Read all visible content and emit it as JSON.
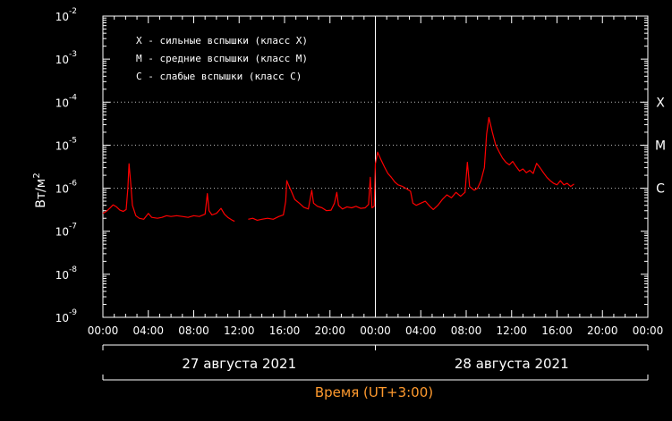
{
  "chart_data": {
    "type": "line",
    "legend": [
      {
        "code": "X",
        "text": "X - сильные вспышки (класс X)"
      },
      {
        "code": "M",
        "text": "M - средние вспышки (класс M)"
      },
      {
        "code": "C",
        "text": "C  - слабые вспышки (класс C)"
      }
    ],
    "ylabel": "Вт/м²",
    "ylabel_base": "Вт/м",
    "ylabel_exp": "2",
    "xlabel": "Время (UT+3:00)",
    "yscale": "log",
    "ylim_exp": [
      -9,
      -2
    ],
    "y_ticks": [
      {
        "base": "10",
        "exp": "-2",
        "value": 0.01
      },
      {
        "base": "10",
        "exp": "-3",
        "value": 0.001
      },
      {
        "base": "10",
        "exp": "-4",
        "value": 0.0001
      },
      {
        "base": "10",
        "exp": "-5",
        "value": 1e-05
      },
      {
        "base": "10",
        "exp": "-6",
        "value": 1e-06
      },
      {
        "base": "10",
        "exp": "-7",
        "value": 1e-07
      },
      {
        "base": "10",
        "exp": "-8",
        "value": 1e-08
      },
      {
        "base": "10",
        "exp": "-9",
        "value": 1e-09
      }
    ],
    "x_unit": "hours since 27 августа 2021 00:00 (UT+3)",
    "xlim": [
      0,
      48
    ],
    "x_tick_labels": [
      "00:00",
      "04:00",
      "08:00",
      "12:00",
      "16:00",
      "20:00",
      "00:00",
      "04:00",
      "08:00",
      "12:00",
      "16:00",
      "20:00",
      "00:00"
    ],
    "days": [
      {
        "label": "27 августа 2021",
        "start_hour": 0,
        "end_hour": 24
      },
      {
        "label": "28 августа 2021",
        "start_hour": 24,
        "end_hour": 48
      }
    ],
    "day_divider_hour": 24,
    "class_levels": [
      {
        "label": "X",
        "value": 0.0001
      },
      {
        "label": "M",
        "value": 1e-05
      },
      {
        "label": "C",
        "value": 1e-06
      }
    ],
    "series_color": "#ff0000",
    "series": [
      {
        "name": "",
        "segments": [
          [
            [
              0,
              2.6e-07
            ],
            [
              0.3,
              2.9e-07
            ],
            [
              0.6,
              3.4e-07
            ],
            [
              0.9,
              4.1e-07
            ],
            [
              1.2,
              3.7e-07
            ],
            [
              1.5,
              3.1e-07
            ],
            [
              1.8,
              2.9e-07
            ],
            [
              2.05,
              3.2e-07
            ],
            [
              2.2,
              1e-06
            ],
            [
              2.3,
              3.7e-06
            ],
            [
              2.45,
              1.3e-06
            ],
            [
              2.6,
              4e-07
            ],
            [
              2.9,
              2.3e-07
            ],
            [
              3.2,
              2e-07
            ],
            [
              3.6,
              1.9e-07
            ],
            [
              4.0,
              2.6e-07
            ],
            [
              4.3,
              2.1e-07
            ],
            [
              4.8,
              2e-07
            ],
            [
              5.2,
              2.1e-07
            ],
            [
              5.6,
              2.3e-07
            ],
            [
              6.0,
              2.2e-07
            ],
            [
              6.5,
              2.3e-07
            ],
            [
              7.0,
              2.2e-07
            ],
            [
              7.5,
              2.1e-07
            ],
            [
              8.0,
              2.3e-07
            ],
            [
              8.5,
              2.2e-07
            ],
            [
              9.0,
              2.5e-07
            ],
            [
              9.2,
              7.5e-07
            ],
            [
              9.35,
              3e-07
            ],
            [
              9.6,
              2.4e-07
            ],
            [
              10.0,
              2.6e-07
            ],
            [
              10.4,
              3.4e-07
            ],
            [
              10.7,
              2.5e-07
            ],
            [
              11.0,
              2.1e-07
            ],
            [
              11.4,
              1.8e-07
            ],
            [
              11.6,
              1.7e-07
            ]
          ],
          [
            [
              12.8,
              1.9e-07
            ],
            [
              13.2,
              2e-07
            ],
            [
              13.6,
              1.8e-07
            ],
            [
              14.0,
              1.9e-07
            ],
            [
              14.5,
              2e-07
            ],
            [
              15.0,
              1.9e-07
            ],
            [
              15.5,
              2.2e-07
            ],
            [
              15.9,
              2.4e-07
            ],
            [
              16.1,
              5e-07
            ],
            [
              16.2,
              1.5e-06
            ],
            [
              16.35,
              1.2e-06
            ],
            [
              16.6,
              8.5e-07
            ],
            [
              16.9,
              5.5e-07
            ],
            [
              17.3,
              4.5e-07
            ],
            [
              17.7,
              3.6e-07
            ],
            [
              18.1,
              3.3e-07
            ],
            [
              18.4,
              9e-07
            ],
            [
              18.55,
              4.5e-07
            ],
            [
              18.9,
              3.8e-07
            ],
            [
              19.3,
              3.5e-07
            ],
            [
              19.7,
              3e-07
            ],
            [
              20.1,
              3.1e-07
            ],
            [
              20.4,
              4.5e-07
            ],
            [
              20.6,
              8e-07
            ],
            [
              20.75,
              4e-07
            ],
            [
              21.1,
              3.3e-07
            ],
            [
              21.5,
              3.7e-07
            ],
            [
              21.9,
              3.5e-07
            ],
            [
              22.3,
              3.8e-07
            ],
            [
              22.7,
              3.4e-07
            ],
            [
              23.1,
              3.5e-07
            ],
            [
              23.4,
              4.2e-07
            ],
            [
              23.55,
              1.8e-06
            ],
            [
              23.7,
              3.5e-07
            ],
            [
              23.9,
              3.8e-07
            ],
            [
              24.0,
              3.7e-06
            ],
            [
              24.2,
              6.9e-06
            ],
            [
              24.5,
              4.6e-06
            ],
            [
              24.8,
              3.1e-06
            ],
            [
              25.1,
              2.2e-06
            ],
            [
              25.4,
              1.8e-06
            ],
            [
              25.7,
              1.4e-06
            ],
            [
              26.0,
              1.2e-06
            ],
            [
              26.4,
              1.1e-06
            ],
            [
              26.8,
              9.5e-07
            ],
            [
              27.1,
              8.5e-07
            ],
            [
              27.3,
              4.5e-07
            ],
            [
              27.6,
              4e-07
            ],
            [
              28.0,
              4.5e-07
            ],
            [
              28.4,
              5e-07
            ],
            [
              28.8,
              3.8e-07
            ],
            [
              29.1,
              3.2e-07
            ],
            [
              29.5,
              4e-07
            ],
            [
              29.9,
              5.5e-07
            ],
            [
              30.3,
              7e-07
            ],
            [
              30.7,
              6e-07
            ],
            [
              31.1,
              8e-07
            ],
            [
              31.5,
              6.5e-07
            ],
            [
              31.9,
              8e-07
            ],
            [
              32.1,
              4e-06
            ],
            [
              32.3,
              1.1e-06
            ],
            [
              32.7,
              9e-07
            ],
            [
              33.0,
              1e-06
            ],
            [
              33.3,
              1.5e-06
            ],
            [
              33.6,
              3e-06
            ],
            [
              33.8,
              1.8e-05
            ],
            [
              34.0,
              4.4e-05
            ],
            [
              34.3,
              2e-05
            ],
            [
              34.6,
              1e-05
            ],
            [
              34.9,
              7e-06
            ],
            [
              35.2,
              5e-06
            ],
            [
              35.5,
              4e-06
            ],
            [
              35.8,
              3.5e-06
            ],
            [
              36.1,
              4.2e-06
            ],
            [
              36.4,
              3.2e-06
            ],
            [
              36.7,
              2.5e-06
            ],
            [
              37.0,
              2.8e-06
            ],
            [
              37.3,
              2.3e-06
            ],
            [
              37.6,
              2.6e-06
            ],
            [
              37.9,
              2.2e-06
            ],
            [
              38.2,
              3.8e-06
            ],
            [
              38.5,
              3e-06
            ],
            [
              38.8,
              2.3e-06
            ],
            [
              39.1,
              1.8e-06
            ],
            [
              39.4,
              1.5e-06
            ],
            [
              39.7,
              1.3e-06
            ],
            [
              40.0,
              1.2e-06
            ],
            [
              40.3,
              1.5e-06
            ],
            [
              40.6,
              1.2e-06
            ],
            [
              40.9,
              1.3e-06
            ],
            [
              41.2,
              1.1e-06
            ],
            [
              41.5,
              1.25e-06
            ]
          ]
        ]
      }
    ]
  }
}
